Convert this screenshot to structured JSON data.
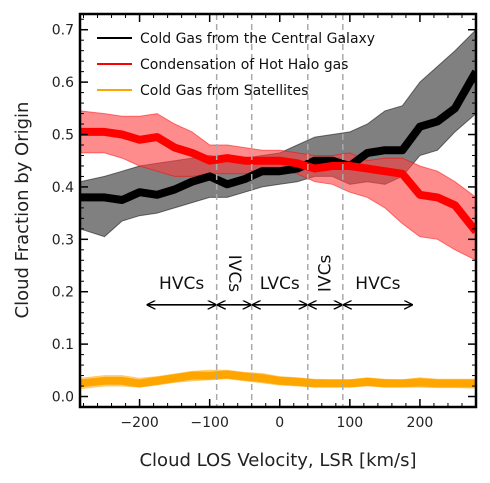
{
  "chart_data": {
    "type": "line",
    "xlabel": "Cloud LOS Velocity, LSR [km/s]",
    "ylabel": "Cloud Fraction by Origin",
    "xlim": [
      -285,
      280
    ],
    "ylim": [
      -0.02,
      0.73
    ],
    "xticks": [
      -200,
      -100,
      0,
      100,
      200
    ],
    "xtick_labels": [
      "−200",
      "−100",
      "0",
      "100",
      "200"
    ],
    "yticks": [
      0.0,
      0.1,
      0.2,
      0.3,
      0.4,
      0.5,
      0.6,
      0.7
    ],
    "ytick_labels": [
      "0.0",
      "0.1",
      "0.2",
      "0.3",
      "0.4",
      "0.5",
      "0.6",
      "0.7"
    ],
    "grid": false,
    "legend_position": "top-left",
    "x": [
      -285,
      -250,
      -225,
      -200,
      -175,
      -150,
      -125,
      -100,
      -75,
      -50,
      -25,
      0,
      25,
      50,
      75,
      100,
      125,
      150,
      175,
      200,
      225,
      250,
      280
    ],
    "series": [
      {
        "name": "Cold Gas from the Central Galaxy",
        "color": "#000000",
        "band_color": "#555555",
        "values": [
          0.38,
          0.38,
          0.375,
          0.39,
          0.385,
          0.395,
          0.41,
          0.42,
          0.405,
          0.415,
          0.43,
          0.43,
          0.435,
          0.45,
          0.45,
          0.44,
          0.465,
          0.47,
          0.47,
          0.515,
          0.525,
          0.55,
          0.62
        ],
        "lower": [
          0.32,
          0.305,
          0.335,
          0.345,
          0.35,
          0.36,
          0.37,
          0.38,
          0.38,
          0.39,
          0.4,
          0.405,
          0.41,
          0.42,
          0.42,
          0.405,
          0.41,
          0.405,
          0.42,
          0.46,
          0.47,
          0.505,
          0.54
        ],
        "upper": [
          0.41,
          0.42,
          0.43,
          0.44,
          0.445,
          0.45,
          0.455,
          0.46,
          0.455,
          0.455,
          0.46,
          0.465,
          0.48,
          0.495,
          0.5,
          0.505,
          0.52,
          0.545,
          0.555,
          0.6,
          0.63,
          0.66,
          0.7
        ]
      },
      {
        "name": "Condensation of Hot Halo gas",
        "color": "#ff0000",
        "band_color": "#ff4040",
        "values": [
          0.505,
          0.505,
          0.5,
          0.49,
          0.495,
          0.475,
          0.465,
          0.45,
          0.455,
          0.45,
          0.45,
          0.45,
          0.445,
          0.435,
          0.44,
          0.44,
          0.435,
          0.43,
          0.425,
          0.385,
          0.38,
          0.365,
          0.315
        ],
        "lower": [
          0.465,
          0.465,
          0.455,
          0.44,
          0.43,
          0.42,
          0.42,
          0.425,
          0.425,
          0.425,
          0.425,
          0.43,
          0.425,
          0.41,
          0.405,
          0.39,
          0.38,
          0.36,
          0.33,
          0.305,
          0.3,
          0.28,
          0.26
        ],
        "upper": [
          0.545,
          0.54,
          0.535,
          0.535,
          0.54,
          0.52,
          0.505,
          0.48,
          0.48,
          0.475,
          0.47,
          0.47,
          0.465,
          0.46,
          0.46,
          0.465,
          0.45,
          0.455,
          0.455,
          0.44,
          0.43,
          0.41,
          0.38
        ]
      },
      {
        "name": "Cold Gas from Satellites",
        "color": "#ffa500",
        "band_color": "#ffc04d",
        "values": [
          0.025,
          0.03,
          0.03,
          0.025,
          0.03,
          0.035,
          0.04,
          0.04,
          0.042,
          0.038,
          0.035,
          0.03,
          0.028,
          0.025,
          0.025,
          0.025,
          0.028,
          0.025,
          0.025,
          0.027,
          0.025,
          0.025,
          0.025
        ],
        "lower": [
          0.015,
          0.02,
          0.02,
          0.018,
          0.022,
          0.027,
          0.03,
          0.032,
          0.034,
          0.03,
          0.026,
          0.022,
          0.02,
          0.018,
          0.018,
          0.018,
          0.02,
          0.018,
          0.018,
          0.018,
          0.017,
          0.017,
          0.016
        ],
        "upper": [
          0.035,
          0.04,
          0.04,
          0.035,
          0.038,
          0.043,
          0.048,
          0.05,
          0.05,
          0.046,
          0.044,
          0.038,
          0.036,
          0.033,
          0.032,
          0.032,
          0.036,
          0.033,
          0.032,
          0.036,
          0.033,
          0.033,
          0.033
        ]
      }
    ],
    "vlines": [
      -90,
      -40,
      40,
      90
    ],
    "regions": [
      {
        "label": "HVCs",
        "x_from": -190,
        "x_to": -90,
        "y": 0.175,
        "label_y": 0.215,
        "vertical": false
      },
      {
        "label": "IVCs",
        "x_from": -90,
        "x_to": -40,
        "y": 0.175,
        "label_y": 0.235,
        "vertical": true,
        "rotation": 90
      },
      {
        "label": "LVCs",
        "x_from": -40,
        "x_to": 40,
        "y": 0.175,
        "label_y": 0.215,
        "vertical": false
      },
      {
        "label": "IVCs",
        "x_from": 40,
        "x_to": 90,
        "y": 0.175,
        "label_y": 0.235,
        "vertical": true,
        "rotation": -90
      },
      {
        "label": "HVCs",
        "x_from": 90,
        "x_to": 190,
        "y": 0.175,
        "label_y": 0.215,
        "vertical": false
      }
    ]
  }
}
